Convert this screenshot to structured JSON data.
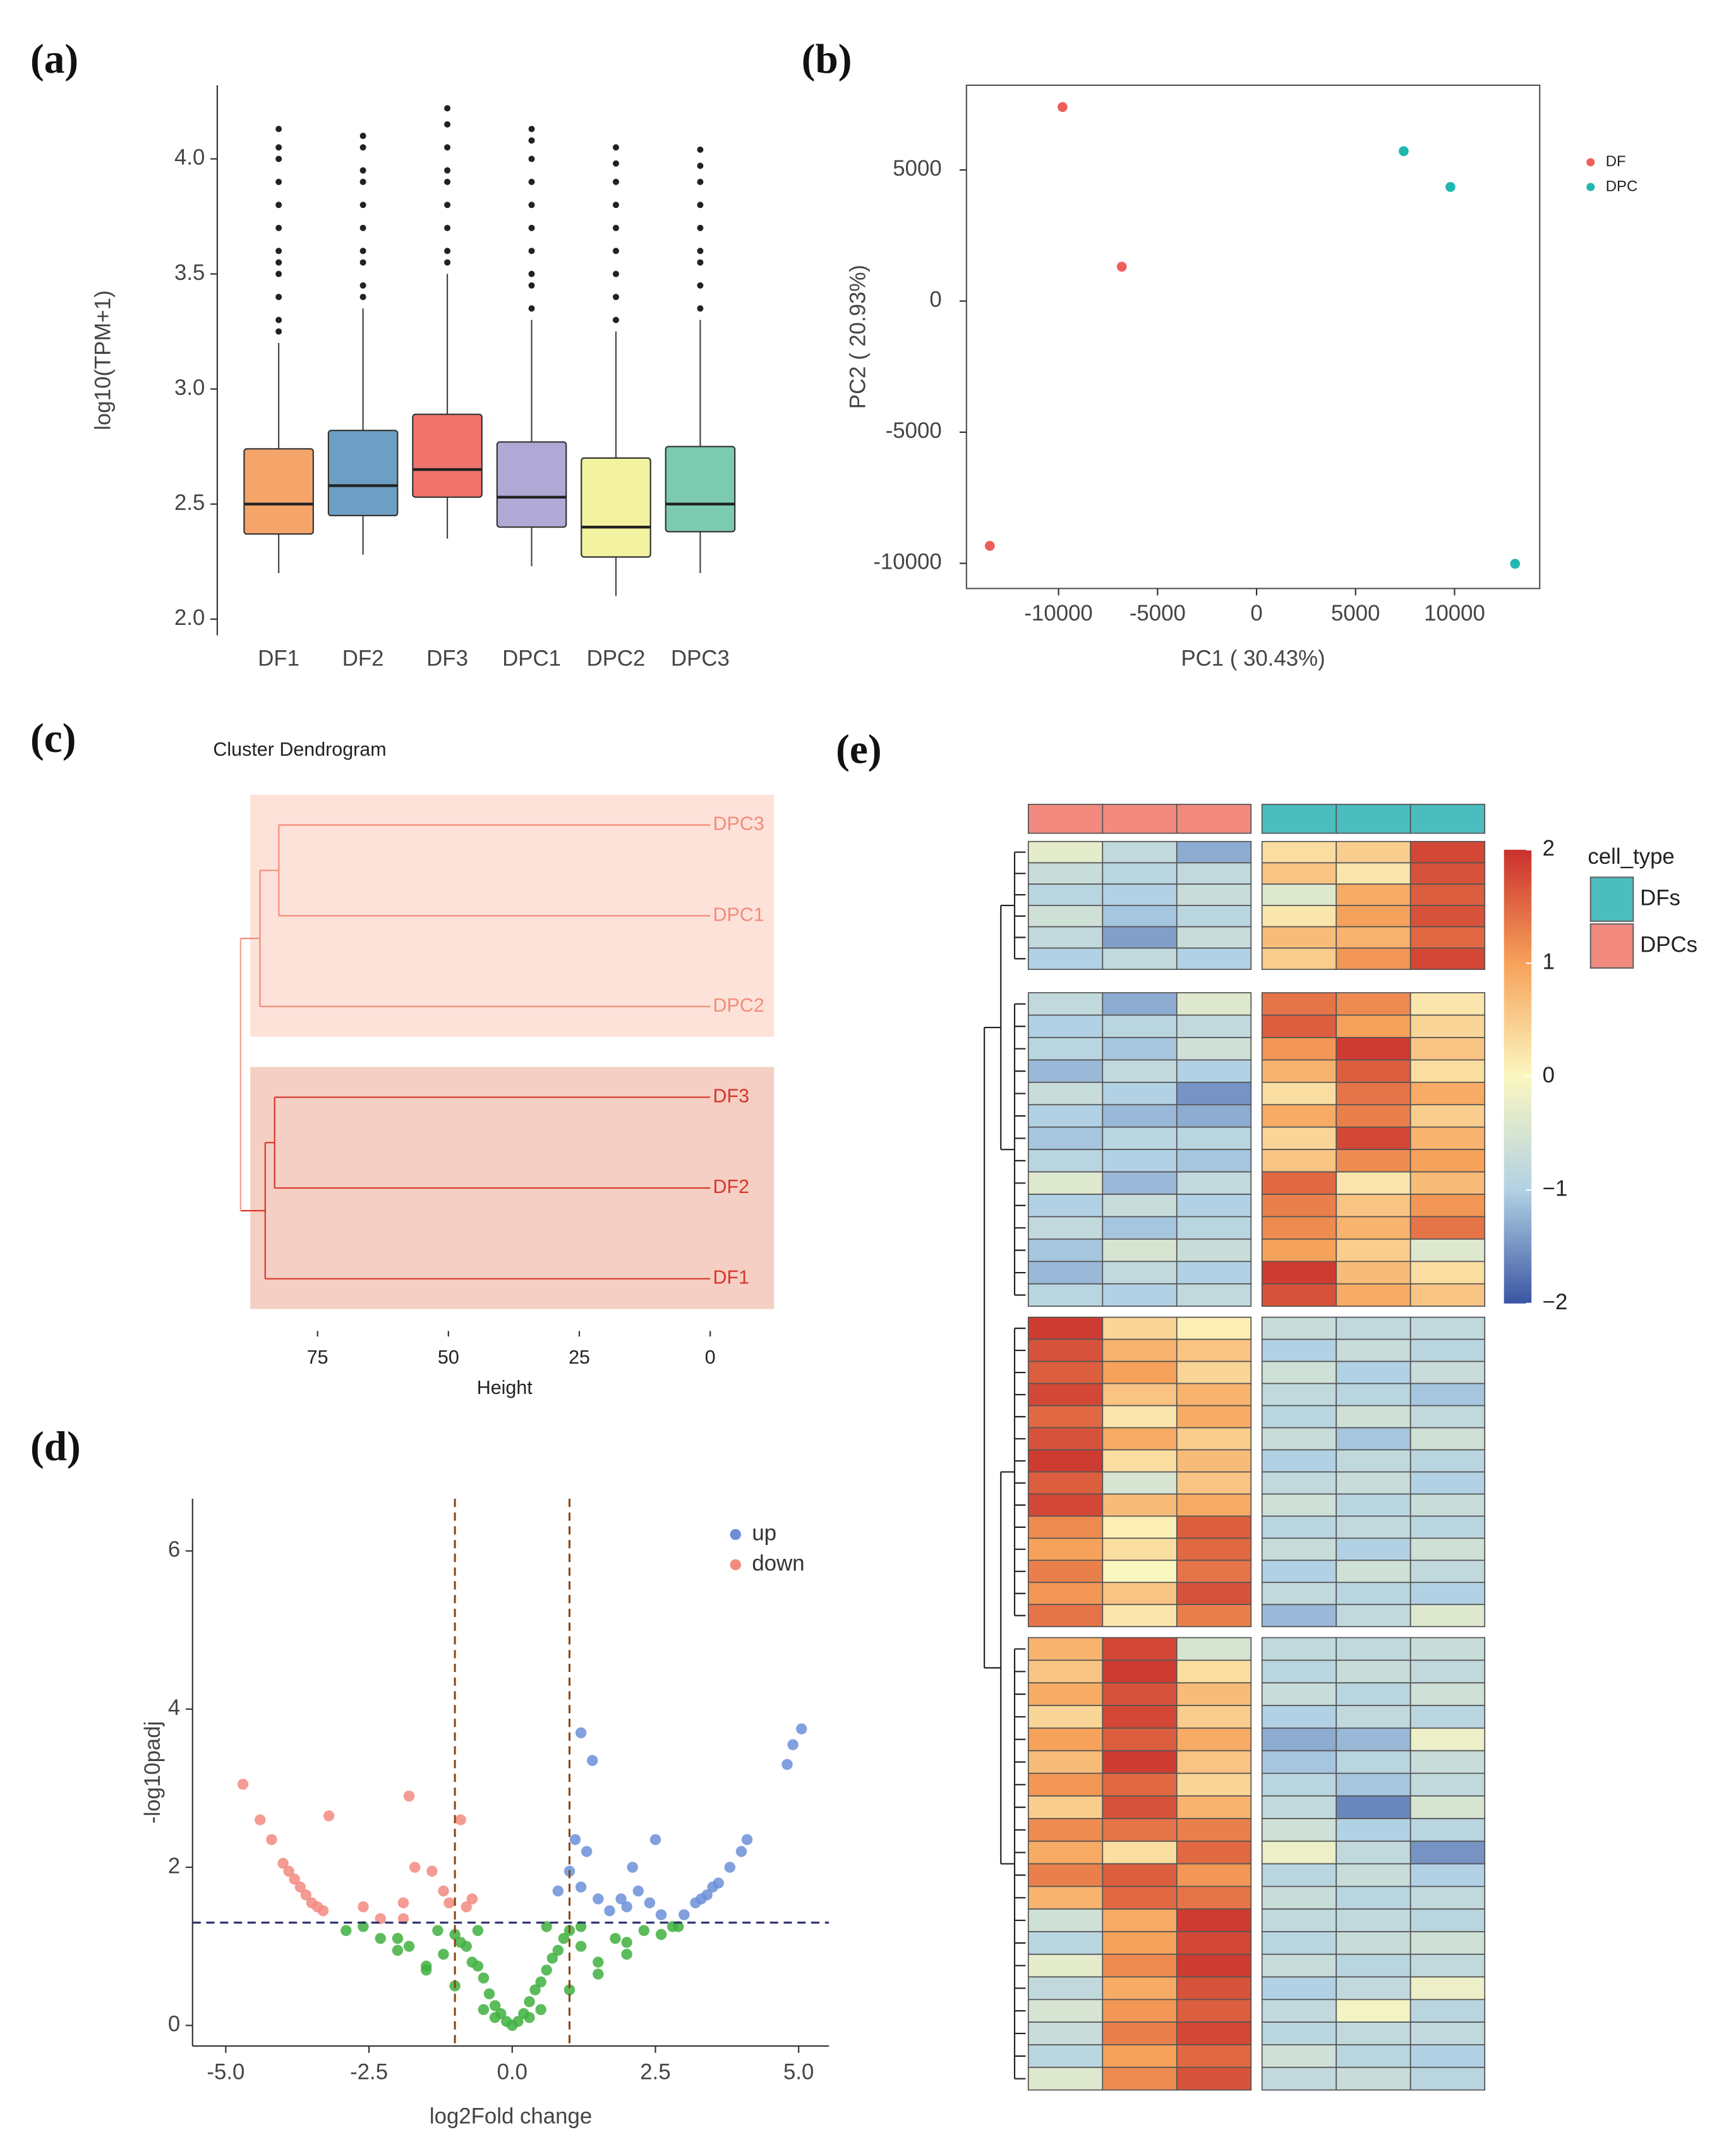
{
  "chart_data": [
    {
      "type": "box",
      "panel": "(a)",
      "ylabel": "log10(TPM+1)",
      "categories": [
        "DF1",
        "DF2",
        "DF3",
        "DPC1",
        "DPC2",
        "DPC3"
      ],
      "ylim": [
        1.93,
        4.32
      ],
      "yticks": [
        {
          "value": 2,
          "label": "2.0"
        },
        2.5,
        {
          "value": 3,
          "label": "3.0"
        },
        3.5,
        {
          "value": 4,
          "label": "4.0"
        }
      ],
      "boxes": [
        {
          "q1": 2.37,
          "median": 2.5,
          "q3": 2.74,
          "whislo": 2.2,
          "whishi": 3.2,
          "color": "#f5a56a",
          "outliers": [
            3.25,
            3.3,
            3.4,
            3.5,
            3.55,
            3.6,
            3.7,
            3.8,
            3.9,
            4.0,
            4.05,
            4.13
          ]
        },
        {
          "q1": 2.45,
          "median": 2.58,
          "q3": 2.82,
          "whislo": 2.28,
          "whishi": 3.35,
          "color": "#6d9ec3",
          "outliers": [
            3.4,
            3.45,
            3.55,
            3.6,
            3.7,
            3.8,
            3.9,
            3.95,
            4.05,
            4.1
          ]
        },
        {
          "q1": 2.53,
          "median": 2.65,
          "q3": 2.89,
          "whislo": 2.35,
          "whishi": 3.5,
          "color": "#f0746b",
          "outliers": [
            3.55,
            3.6,
            3.7,
            3.8,
            3.9,
            3.95,
            4.05,
            4.15,
            4.22
          ]
        },
        {
          "q1": 2.4,
          "median": 2.53,
          "q3": 2.77,
          "whislo": 2.23,
          "whishi": 3.3,
          "color": "#b0a9d6",
          "outliers": [
            3.35,
            3.45,
            3.5,
            3.6,
            3.7,
            3.8,
            3.9,
            4.0,
            4.08,
            4.13
          ]
        },
        {
          "q1": 2.27,
          "median": 2.4,
          "q3": 2.7,
          "whislo": 2.1,
          "whishi": 3.25,
          "color": "#f2f2a0",
          "outliers": [
            3.3,
            3.4,
            3.5,
            3.6,
            3.7,
            3.8,
            3.9,
            3.98,
            4.05
          ]
        },
        {
          "q1": 2.38,
          "median": 2.5,
          "q3": 2.75,
          "whislo": 2.2,
          "whishi": 3.3,
          "color": "#7ccbb0",
          "outliers": [
            3.35,
            3.45,
            3.55,
            3.6,
            3.7,
            3.8,
            3.9,
            3.97,
            4.04
          ]
        }
      ]
    },
    {
      "type": "scatter",
      "panel": "(b)",
      "xlabel": "PC1 ( 30.43%)",
      "ylabel": "PC2 ( 20.93%)",
      "xlim": [
        -14650,
        14300
      ],
      "ylim": [
        -10960,
        8230
      ],
      "xticks": [
        -10000,
        -5000,
        0,
        5000,
        10000
      ],
      "yticks": [
        5000,
        0,
        -5000,
        -10000
      ],
      "series": [
        {
          "name": "DF",
          "color": "#ee5f58",
          "x": [
            -9800,
            -6806,
            -13472
          ],
          "y": [
            7400,
            1311,
            -9334
          ]
        },
        {
          "name": "DPC",
          "color": "#1fb8b0",
          "x": [
            7430,
            9790,
            13055
          ],
          "y": [
            5716,
            4352,
            -10016
          ]
        }
      ]
    },
    {
      "type": "dendrogram",
      "panel": "(c)",
      "title": "Cluster Dendrogram",
      "xlabel": "Height",
      "xlim": [
        91,
        -3
      ],
      "xticks": [
        75,
        50,
        25,
        0
      ],
      "leaves": [
        "DPC3",
        "DPC1",
        "DPC2",
        "DF3",
        "DF2",
        "DF1"
      ],
      "merges": [
        {
          "children": [
            0,
            1
          ],
          "height": 82.4
        },
        {
          "children": [
            6,
            2
          ],
          "height": 86
        },
        {
          "children": [
            3,
            4
          ],
          "height": 83.2
        },
        {
          "children": [
            8,
            5
          ],
          "height": 85
        },
        {
          "children": [
            7,
            9
          ],
          "height": 89.7
        }
      ],
      "root_color": "#f4a090",
      "clusters": [
        {
          "leaves": [
            0,
            1,
            2
          ],
          "fill": "#fde2da",
          "color": "#f38c78"
        },
        {
          "leaves": [
            3,
            4,
            5
          ],
          "fill": "#f5cfc3",
          "color": "#d9352b"
        }
      ]
    },
    {
      "type": "volcano",
      "panel": "(d)",
      "xlabel": "log2Fold change",
      "ylabel": "-log10padj",
      "xlim": [
        -5.58,
        5.53
      ],
      "ylim": [
        -0.26,
        6.66
      ],
      "xticks": [
        {
          "value": -5,
          "label": "-5.0"
        },
        -2.5,
        {
          "value": 0,
          "label": "0.0"
        },
        2.5,
        {
          "value": 5,
          "label": "5.0"
        }
      ],
      "yticks": [
        0,
        2,
        4,
        6
      ],
      "vlines": [
        -1,
        1
      ],
      "hline": 1.3,
      "vline_color": "#8b4513",
      "hline_color": "#2b2f6e",
      "series": [
        {
          "name": "up",
          "color": "#6b8fd8",
          "x": [
            1.2,
            1.4,
            4.8,
            4.9,
            5.05,
            1.1,
            1.3,
            2.5,
            2.1,
            1.0,
            0.8,
            1.2,
            1.5,
            1.9,
            2.2,
            2.0,
            2.4,
            3.0,
            3.2,
            3.4,
            3.6,
            3.8,
            4.0,
            4.1,
            3.3,
            3.5,
            2.6,
            1.7
          ],
          "y": [
            3.7,
            3.35,
            3.3,
            3.55,
            3.75,
            2.35,
            2.2,
            2.35,
            2.0,
            1.95,
            1.7,
            1.75,
            1.6,
            1.6,
            1.7,
            1.5,
            1.55,
            1.4,
            1.55,
            1.65,
            1.8,
            2.0,
            2.2,
            2.35,
            1.6,
            1.75,
            1.4,
            1.45
          ]
        },
        {
          "name": "down",
          "color": "#f28a80",
          "x": [
            -4.7,
            -4.4,
            -4.2,
            -3.2,
            -1.8,
            -0.9,
            -4.0,
            -3.9,
            -3.8,
            -3.7,
            -3.6,
            -3.5,
            -3.4,
            -3.3,
            -2.6,
            -2.3,
            -1.9,
            -1.7,
            -1.4,
            -1.2,
            -1.1,
            -0.8,
            -0.7,
            -1.9
          ],
          "y": [
            3.05,
            2.6,
            2.35,
            2.65,
            2.9,
            2.6,
            2.05,
            1.95,
            1.85,
            1.75,
            1.65,
            1.55,
            1.5,
            1.45,
            1.5,
            1.35,
            1.55,
            2.0,
            1.95,
            1.7,
            1.55,
            1.5,
            1.6,
            1.35
          ]
        },
        {
          "color": "#3fb03f",
          "x": [
            0,
            0.1,
            -0.1,
            0.2,
            -0.2,
            0.3,
            -0.3,
            0.4,
            -0.4,
            0.5,
            -0.5,
            0.6,
            -0.6,
            0.7,
            -0.7,
            0.8,
            -0.8,
            0.9,
            -0.9,
            1.0,
            -1.0,
            1.2,
            -1.2,
            1.5,
            -1.5,
            1.8,
            -1.8,
            2.0,
            -2.0,
            2.3,
            -2.3,
            2.6,
            -2.6,
            2.9,
            -2.9,
            0.5,
            -0.5,
            1.0,
            -1.0,
            1.5,
            -1.5,
            0.3,
            -0.3,
            2.0,
            -2.0,
            1.2,
            -1.3,
            0.6,
            -0.6,
            2.8
          ],
          "y": [
            0,
            0.05,
            0.05,
            0.15,
            0.15,
            0.3,
            0.25,
            0.45,
            0.4,
            0.55,
            0.6,
            0.7,
            0.75,
            0.85,
            0.8,
            0.95,
            1.0,
            1.1,
            1.05,
            1.2,
            1.15,
            1.0,
            0.9,
            0.8,
            0.75,
            1.1,
            1.0,
            0.9,
            0.95,
            1.2,
            1.1,
            1.15,
            1.25,
            1.25,
            1.2,
            0.2,
            0.2,
            0.45,
            0.5,
            0.65,
            0.7,
            0.1,
            0.1,
            1.05,
            1.1,
            1.25,
            1.2,
            1.25,
            1.2,
            1.25
          ]
        }
      ]
    },
    {
      "type": "heatmap",
      "panel": "(e)",
      "clim": [
        -2,
        2
      ],
      "cticks": [
        2,
        1,
        0,
        {
          "value": -1,
          "label": "−1"
        },
        {
          "value": -2,
          "label": "−2"
        }
      ],
      "colorscale": [
        "#3a55a3",
        "#b2d1e4",
        "#fbf7c0",
        "#f7a25a",
        "#c9302c"
      ],
      "legend": {
        "title": "cell_type",
        "entries": [
          {
            "name": "DFs",
            "color": "#4cbdbf"
          },
          {
            "name": "DPCs",
            "color": "#f28a80"
          }
        ]
      },
      "column_groups": [
        1,
        1,
        1,
        0,
        0,
        0
      ],
      "values": [
        [
          [
            -0.3,
            -0.8,
            -1.3,
            0.3,
            0.5,
            1.8
          ],
          [
            -0.7,
            -0.9,
            -0.8,
            0.6,
            0.2,
            1.7
          ],
          [
            -0.9,
            -1.0,
            -0.7,
            -0.4,
            0.9,
            1.6
          ],
          [
            -0.6,
            -1.1,
            -0.9,
            0.2,
            1.0,
            1.7
          ],
          [
            -0.8,
            -1.4,
            -0.7,
            0.7,
            0.8,
            1.5
          ],
          [
            -1.0,
            -0.8,
            -1.0,
            0.5,
            1.1,
            1.8
          ]
        ],
        [
          [
            -0.8,
            -1.3,
            -0.4,
            1.4,
            1.2,
            0.2
          ],
          [
            -1.0,
            -0.9,
            -0.8,
            1.6,
            1.0,
            0.4
          ],
          [
            -0.9,
            -1.1,
            -0.6,
            1.1,
            1.9,
            0.6
          ],
          [
            -1.2,
            -0.8,
            -1.0,
            0.8,
            1.6,
            0.3
          ],
          [
            -0.7,
            -1.0,
            -1.5,
            0.3,
            1.4,
            0.9
          ],
          [
            -1.0,
            -1.2,
            -1.3,
            0.9,
            1.3,
            0.5
          ],
          [
            -1.1,
            -0.9,
            -0.9,
            0.4,
            1.8,
            0.8
          ],
          [
            -0.9,
            -1.0,
            -1.1,
            0.6,
            1.2,
            1.0
          ],
          [
            -0.4,
            -1.2,
            -0.8,
            1.5,
            0.2,
            0.7
          ],
          [
            -1.0,
            -0.7,
            -1.0,
            1.3,
            0.6,
            1.1
          ],
          [
            -0.8,
            -1.1,
            -0.9,
            1.2,
            0.8,
            1.4
          ],
          [
            -1.1,
            -0.5,
            -0.7,
            1.0,
            0.5,
            -0.4
          ],
          [
            -1.2,
            -0.8,
            -1.0,
            1.9,
            0.7,
            0.3
          ],
          [
            -0.9,
            -1.0,
            -0.8,
            1.7,
            0.9,
            0.6
          ]
        ],
        [
          [
            1.9,
            0.4,
            0.1,
            -0.7,
            -0.8,
            -0.8
          ],
          [
            1.7,
            0.8,
            0.6,
            -1.0,
            -0.7,
            -0.9
          ],
          [
            1.6,
            1.0,
            0.4,
            -0.6,
            -1.0,
            -0.7
          ],
          [
            1.8,
            0.6,
            0.8,
            -0.8,
            -0.9,
            -1.1
          ],
          [
            1.5,
            0.2,
            0.9,
            -0.9,
            -0.6,
            -0.8
          ],
          [
            1.7,
            0.9,
            0.5,
            -0.7,
            -1.1,
            -0.6
          ],
          [
            1.9,
            0.3,
            0.7,
            -1.0,
            -0.8,
            -0.9
          ],
          [
            1.6,
            -0.5,
            0.6,
            -0.8,
            -0.7,
            -1.0
          ],
          [
            1.8,
            0.7,
            0.9,
            -0.6,
            -0.9,
            -0.7
          ],
          [
            1.2,
            0.1,
            1.6,
            -0.9,
            -0.8,
            -0.9
          ],
          [
            1.0,
            0.3,
            1.5,
            -0.7,
            -1.0,
            -0.6
          ],
          [
            1.3,
            0.0,
            1.4,
            -1.0,
            -0.6,
            -0.8
          ],
          [
            1.1,
            0.6,
            1.7,
            -0.8,
            -0.9,
            -1.0
          ],
          [
            1.4,
            0.2,
            1.3,
            -1.2,
            -0.8,
            -0.4
          ]
        ],
        [
          [
            0.8,
            1.8,
            -0.5,
            -0.8,
            -0.8,
            -0.7
          ],
          [
            0.6,
            1.9,
            0.3,
            -0.9,
            -0.7,
            -0.8
          ],
          [
            0.9,
            1.7,
            0.7,
            -0.7,
            -0.9,
            -0.6
          ],
          [
            0.4,
            1.8,
            0.5,
            -1.0,
            -0.8,
            -0.9
          ],
          [
            1.0,
            1.6,
            0.9,
            -1.3,
            -1.2,
            -0.2
          ],
          [
            0.7,
            1.9,
            0.6,
            -1.1,
            -0.9,
            -0.7
          ],
          [
            1.1,
            1.5,
            0.4,
            -0.9,
            -1.1,
            -0.8
          ],
          [
            0.5,
            1.7,
            0.8,
            -0.8,
            -1.6,
            -0.5
          ],
          [
            1.2,
            1.4,
            1.3,
            -0.6,
            -1.0,
            -0.9
          ],
          [
            0.9,
            0.3,
            1.5,
            -0.2,
            -0.8,
            -1.5
          ],
          [
            1.3,
            1.6,
            1.1,
            -0.9,
            -0.7,
            -1.0
          ],
          [
            0.8,
            1.5,
            1.4,
            -0.7,
            -0.9,
            -0.8
          ],
          [
            -0.6,
            0.9,
            1.9,
            -0.8,
            -0.8,
            -0.9
          ],
          [
            -0.9,
            1.0,
            1.8,
            -0.9,
            -0.7,
            -0.6
          ],
          [
            -0.3,
            1.2,
            1.9,
            -0.7,
            -0.9,
            -0.8
          ],
          [
            -0.8,
            0.9,
            1.7,
            -1.0,
            -0.8,
            -0.2
          ],
          [
            -0.5,
            1.1,
            1.6,
            -0.8,
            -0.1,
            -0.9
          ],
          [
            -0.7,
            1.3,
            1.8,
            -0.9,
            -0.8,
            -0.8
          ],
          [
            -0.9,
            1.0,
            1.5,
            -0.6,
            -0.9,
            -1.0
          ],
          [
            -0.4,
            1.2,
            1.7,
            -0.8,
            -0.7,
            -0.9
          ]
        ]
      ]
    }
  ]
}
